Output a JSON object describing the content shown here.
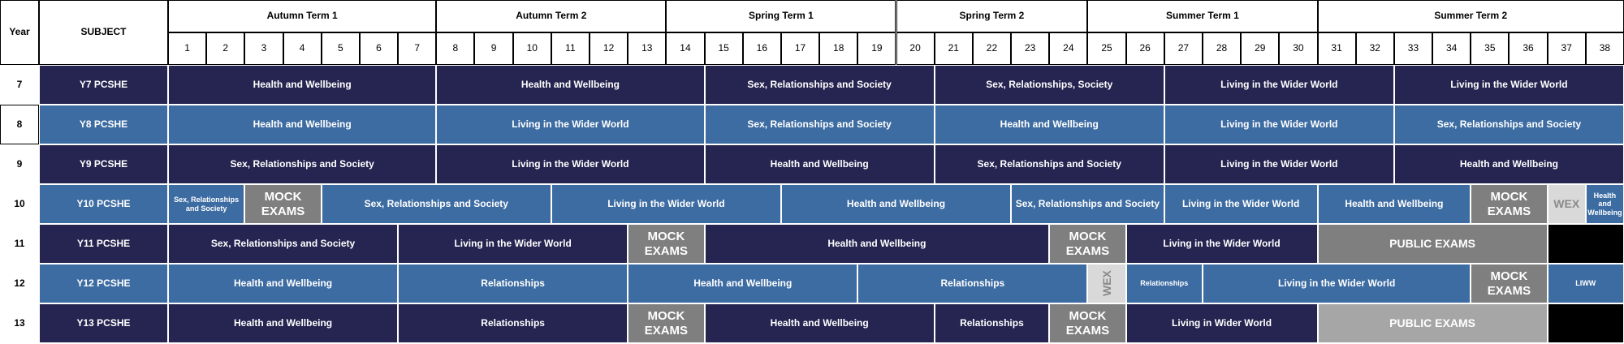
{
  "header": {
    "year_label": "Year",
    "subject_label": "SUBJECT",
    "terms": [
      {
        "label": "Autumn Term 1",
        "start": 1,
        "end": 7
      },
      {
        "label": "Autumn Term 2",
        "start": 8,
        "end": 13
      },
      {
        "label": "Spring Term 1",
        "start": 14,
        "end": 19
      },
      {
        "label": "Spring Term 2",
        "start": 20,
        "end": 24
      },
      {
        "label": "Summer Term 1",
        "start": 25,
        "end": 30
      },
      {
        "label": "Summer Term 2",
        "start": 31,
        "end": 38
      }
    ],
    "weeks": [
      "1",
      "2",
      "3",
      "4",
      "5",
      "6",
      "7",
      "8",
      "9",
      "10",
      "11",
      "12",
      "13",
      "14",
      "15",
      "16",
      "17",
      "18",
      "19",
      "20",
      "21",
      "22",
      "23",
      "24",
      "25",
      "26",
      "27",
      "28",
      "29",
      "30",
      "31",
      "32",
      "33",
      "34",
      "35",
      "36",
      "37",
      "38"
    ]
  },
  "colors": {
    "dark_navy": "#262450",
    "blue": "#3d6ca2",
    "mock_grey": "#7f7f7f",
    "wex_grey": "#d9d9d9",
    "public_light": "#a6a6a6",
    "black": "#000000"
  },
  "rows": [
    {
      "year": "7",
      "subject": "Y7 PCSHE",
      "color": "#262450",
      "selected": false,
      "blocks": [
        {
          "label": "Health and Wellbeing",
          "start": 1,
          "end": 7,
          "kind": "normal"
        },
        {
          "label": "Health and Wellbeing",
          "start": 8,
          "end": 14,
          "kind": "normal"
        },
        {
          "label": "Sex, Relationships and Society",
          "start": 15,
          "end": 20,
          "kind": "normal"
        },
        {
          "label": "Sex, Relationships, Society",
          "start": 21,
          "end": 26,
          "kind": "normal"
        },
        {
          "label": "Living in the Wider World",
          "start": 27,
          "end": 32,
          "kind": "normal"
        },
        {
          "label": "Living in the Wider World",
          "start": 33,
          "end": 38,
          "kind": "normal"
        }
      ]
    },
    {
      "year": "8",
      "subject": "Y8 PCSHE",
      "color": "#3d6ca2",
      "selected": true,
      "blocks": [
        {
          "label": "Health and Wellbeing",
          "start": 1,
          "end": 7,
          "kind": "normal"
        },
        {
          "label": "Living in the Wider World",
          "start": 8,
          "end": 14,
          "kind": "normal"
        },
        {
          "label": "Sex, Relationships and Society",
          "start": 15,
          "end": 20,
          "kind": "normal"
        },
        {
          "label": "Health and Wellbeing",
          "start": 21,
          "end": 26,
          "kind": "normal"
        },
        {
          "label": "Living in the Wider World",
          "start": 27,
          "end": 32,
          "kind": "normal"
        },
        {
          "label": "Sex, Relationships and Society",
          "start": 33,
          "end": 38,
          "kind": "normal"
        }
      ]
    },
    {
      "year": "9",
      "subject": "Y9 PCSHE",
      "color": "#262450",
      "selected": false,
      "blocks": [
        {
          "label": "Sex, Relationships and Society",
          "start": 1,
          "end": 7,
          "kind": "normal"
        },
        {
          "label": "Living in the Wider World",
          "start": 8,
          "end": 14,
          "kind": "normal"
        },
        {
          "label": "Health and Wellbeing",
          "start": 15,
          "end": 20,
          "kind": "normal"
        },
        {
          "label": "Sex, Relationships and Society",
          "start": 21,
          "end": 26,
          "kind": "normal"
        },
        {
          "label": "Living in the Wider World",
          "start": 27,
          "end": 32,
          "kind": "normal"
        },
        {
          "label": "Health and Wellbeing",
          "start": 33,
          "end": 38,
          "kind": "normal"
        }
      ]
    },
    {
      "year": "10",
      "subject": "Y10 PCSHE",
      "color": "#3d6ca2",
      "selected": false,
      "blocks": [
        {
          "label": "Sex, Relationships and Society",
          "start": 1,
          "end": 2,
          "kind": "small"
        },
        {
          "label": "MOCK EXAMS",
          "start": 3,
          "end": 4,
          "kind": "mock"
        },
        {
          "label": "Sex, Relationships and Society",
          "start": 5,
          "end": 10,
          "kind": "normal"
        },
        {
          "label": "Living in the Wider World",
          "start": 11,
          "end": 16,
          "kind": "normal"
        },
        {
          "label": "Health and Wellbeing",
          "start": 17,
          "end": 22,
          "kind": "normal"
        },
        {
          "label": "Sex, Relationships and Society",
          "start": 23,
          "end": 26,
          "kind": "normal"
        },
        {
          "label": "Living in the Wider World",
          "start": 27,
          "end": 30,
          "kind": "normal"
        },
        {
          "label": "Health and Wellbeing",
          "start": 31,
          "end": 34,
          "kind": "normal"
        },
        {
          "label": "MOCK EXAMS",
          "start": 35,
          "end": 36,
          "kind": "mock"
        },
        {
          "label": "WEX",
          "start": 37,
          "end": 37,
          "kind": "wex"
        },
        {
          "label": "Health and Wellbeing",
          "start": 38,
          "end": 38,
          "kind": "small"
        }
      ]
    },
    {
      "year": "11",
      "subject": "Y11 PCSHE",
      "color": "#262450",
      "selected": false,
      "blocks": [
        {
          "label": "Sex, Relationships and Society",
          "start": 1,
          "end": 6,
          "kind": "normal"
        },
        {
          "label": "Living in the Wider World",
          "start": 7,
          "end": 12,
          "kind": "normal"
        },
        {
          "label": "MOCK EXAMS",
          "start": 13,
          "end": 14,
          "kind": "mock"
        },
        {
          "label": "Health and Wellbeing",
          "start": 15,
          "end": 23,
          "kind": "normal"
        },
        {
          "label": "MOCK EXAMS",
          "start": 24,
          "end": 25,
          "kind": "mock"
        },
        {
          "label": "Living in the Wider World",
          "start": 26,
          "end": 30,
          "kind": "normal"
        },
        {
          "label": "PUBLIC EXAMS",
          "start": 31,
          "end": 36,
          "kind": "public-dark"
        },
        {
          "label": "",
          "start": 37,
          "end": 38,
          "kind": "black"
        }
      ]
    },
    {
      "year": "12",
      "subject": "Y12 PCSHE",
      "color": "#3d6ca2",
      "selected": false,
      "blocks": [
        {
          "label": "Health and Wellbeing",
          "start": 1,
          "end": 6,
          "kind": "normal"
        },
        {
          "label": "Relationships",
          "start": 7,
          "end": 12,
          "kind": "normal"
        },
        {
          "label": "Health and Wellbeing",
          "start": 13,
          "end": 18,
          "kind": "normal"
        },
        {
          "label": "Relationships",
          "start": 19,
          "end": 24,
          "kind": "normal"
        },
        {
          "label": "WEX",
          "start": 25,
          "end": 25,
          "kind": "wex-v"
        },
        {
          "label": "Relationships",
          "start": 26,
          "end": 27,
          "kind": "small"
        },
        {
          "label": "Living in the Wider World",
          "start": 28,
          "end": 34,
          "kind": "normal"
        },
        {
          "label": "MOCK EXAMS",
          "start": 35,
          "end": 36,
          "kind": "mock"
        },
        {
          "label": "LIWW",
          "start": 37,
          "end": 38,
          "kind": "small"
        }
      ]
    },
    {
      "year": "13",
      "subject": "Y13 PCSHE",
      "color": "#262450",
      "selected": false,
      "blocks": [
        {
          "label": "Health and Wellbeing",
          "start": 1,
          "end": 6,
          "kind": "normal"
        },
        {
          "label": "Relationships",
          "start": 7,
          "end": 12,
          "kind": "normal"
        },
        {
          "label": "MOCK EXAMS",
          "start": 13,
          "end": 14,
          "kind": "mock"
        },
        {
          "label": "Health and Wellbeing",
          "start": 15,
          "end": 20,
          "kind": "normal"
        },
        {
          "label": "Relationships",
          "start": 21,
          "end": 23,
          "kind": "normal"
        },
        {
          "label": "MOCK EXAMS",
          "start": 24,
          "end": 25,
          "kind": "mock"
        },
        {
          "label": "Living in Wider World",
          "start": 26,
          "end": 30,
          "kind": "normal"
        },
        {
          "label": "PUBLIC EXAMS",
          "start": 31,
          "end": 36,
          "kind": "public-light"
        },
        {
          "label": "",
          "start": 37,
          "end": 38,
          "kind": "black"
        }
      ]
    }
  ]
}
